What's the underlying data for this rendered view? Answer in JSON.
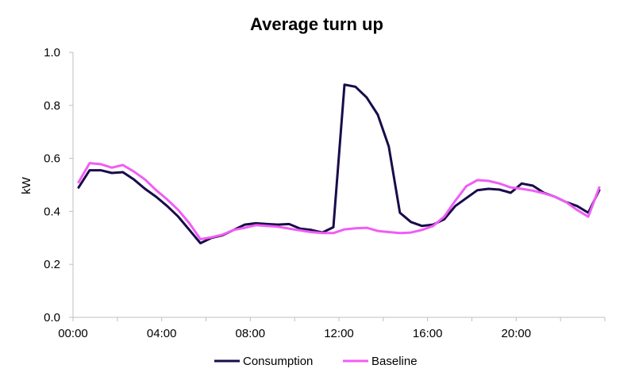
{
  "chart_data": {
    "type": "line",
    "title": "Average turn up",
    "xlabel": "",
    "ylabel": "kW",
    "ylim": [
      0,
      1.0
    ],
    "y_ticks": [
      "0.0",
      "0.2",
      "0.4",
      "0.6",
      "0.8",
      "1.0"
    ],
    "x_ticks": [
      "00:00",
      "04:00",
      "08:00",
      "12:00",
      "16:00",
      "20:00"
    ],
    "xlim_hours": [
      0,
      24
    ],
    "grid": false,
    "legend_position": "bottom",
    "x": [
      0.25,
      0.75,
      1.25,
      1.75,
      2.25,
      2.75,
      3.25,
      3.75,
      4.25,
      4.75,
      5.25,
      5.75,
      6.25,
      6.75,
      7.25,
      7.75,
      8.25,
      8.75,
      9.25,
      9.75,
      10.25,
      10.75,
      11.25,
      11.75,
      12.25,
      12.75,
      13.25,
      13.75,
      14.25,
      14.75,
      15.25,
      15.75,
      16.25,
      16.75,
      17.25,
      17.75,
      18.25,
      18.75,
      19.25,
      19.75,
      20.25,
      20.75,
      21.25,
      21.75,
      22.25,
      22.75,
      23.25,
      23.75
    ],
    "series": [
      {
        "name": "Consumption",
        "color": "#1a0b4a",
        "values": [
          0.49,
          0.555,
          0.555,
          0.545,
          0.548,
          0.52,
          0.485,
          0.455,
          0.42,
          0.38,
          0.33,
          0.28,
          0.3,
          0.31,
          0.33,
          0.35,
          0.355,
          0.352,
          0.35,
          0.352,
          0.335,
          0.33,
          0.32,
          0.34,
          0.878,
          0.87,
          0.83,
          0.765,
          0.645,
          0.395,
          0.36,
          0.345,
          0.35,
          0.37,
          0.42,
          0.45,
          0.48,
          0.485,
          0.482,
          0.47,
          0.505,
          0.497,
          0.47,
          0.455,
          0.435,
          0.42,
          0.395,
          0.48
        ]
      },
      {
        "name": "Baseline",
        "color": "#f05df5",
        "values": [
          0.51,
          0.582,
          0.578,
          0.565,
          0.575,
          0.55,
          0.52,
          0.48,
          0.445,
          0.405,
          0.355,
          0.295,
          0.302,
          0.312,
          0.33,
          0.338,
          0.348,
          0.345,
          0.342,
          0.335,
          0.328,
          0.322,
          0.318,
          0.318,
          0.332,
          0.336,
          0.338,
          0.326,
          0.322,
          0.318,
          0.32,
          0.33,
          0.345,
          0.38,
          0.44,
          0.495,
          0.518,
          0.515,
          0.505,
          0.49,
          0.485,
          0.478,
          0.468,
          0.455,
          0.435,
          0.405,
          0.38,
          0.49
        ]
      }
    ]
  }
}
